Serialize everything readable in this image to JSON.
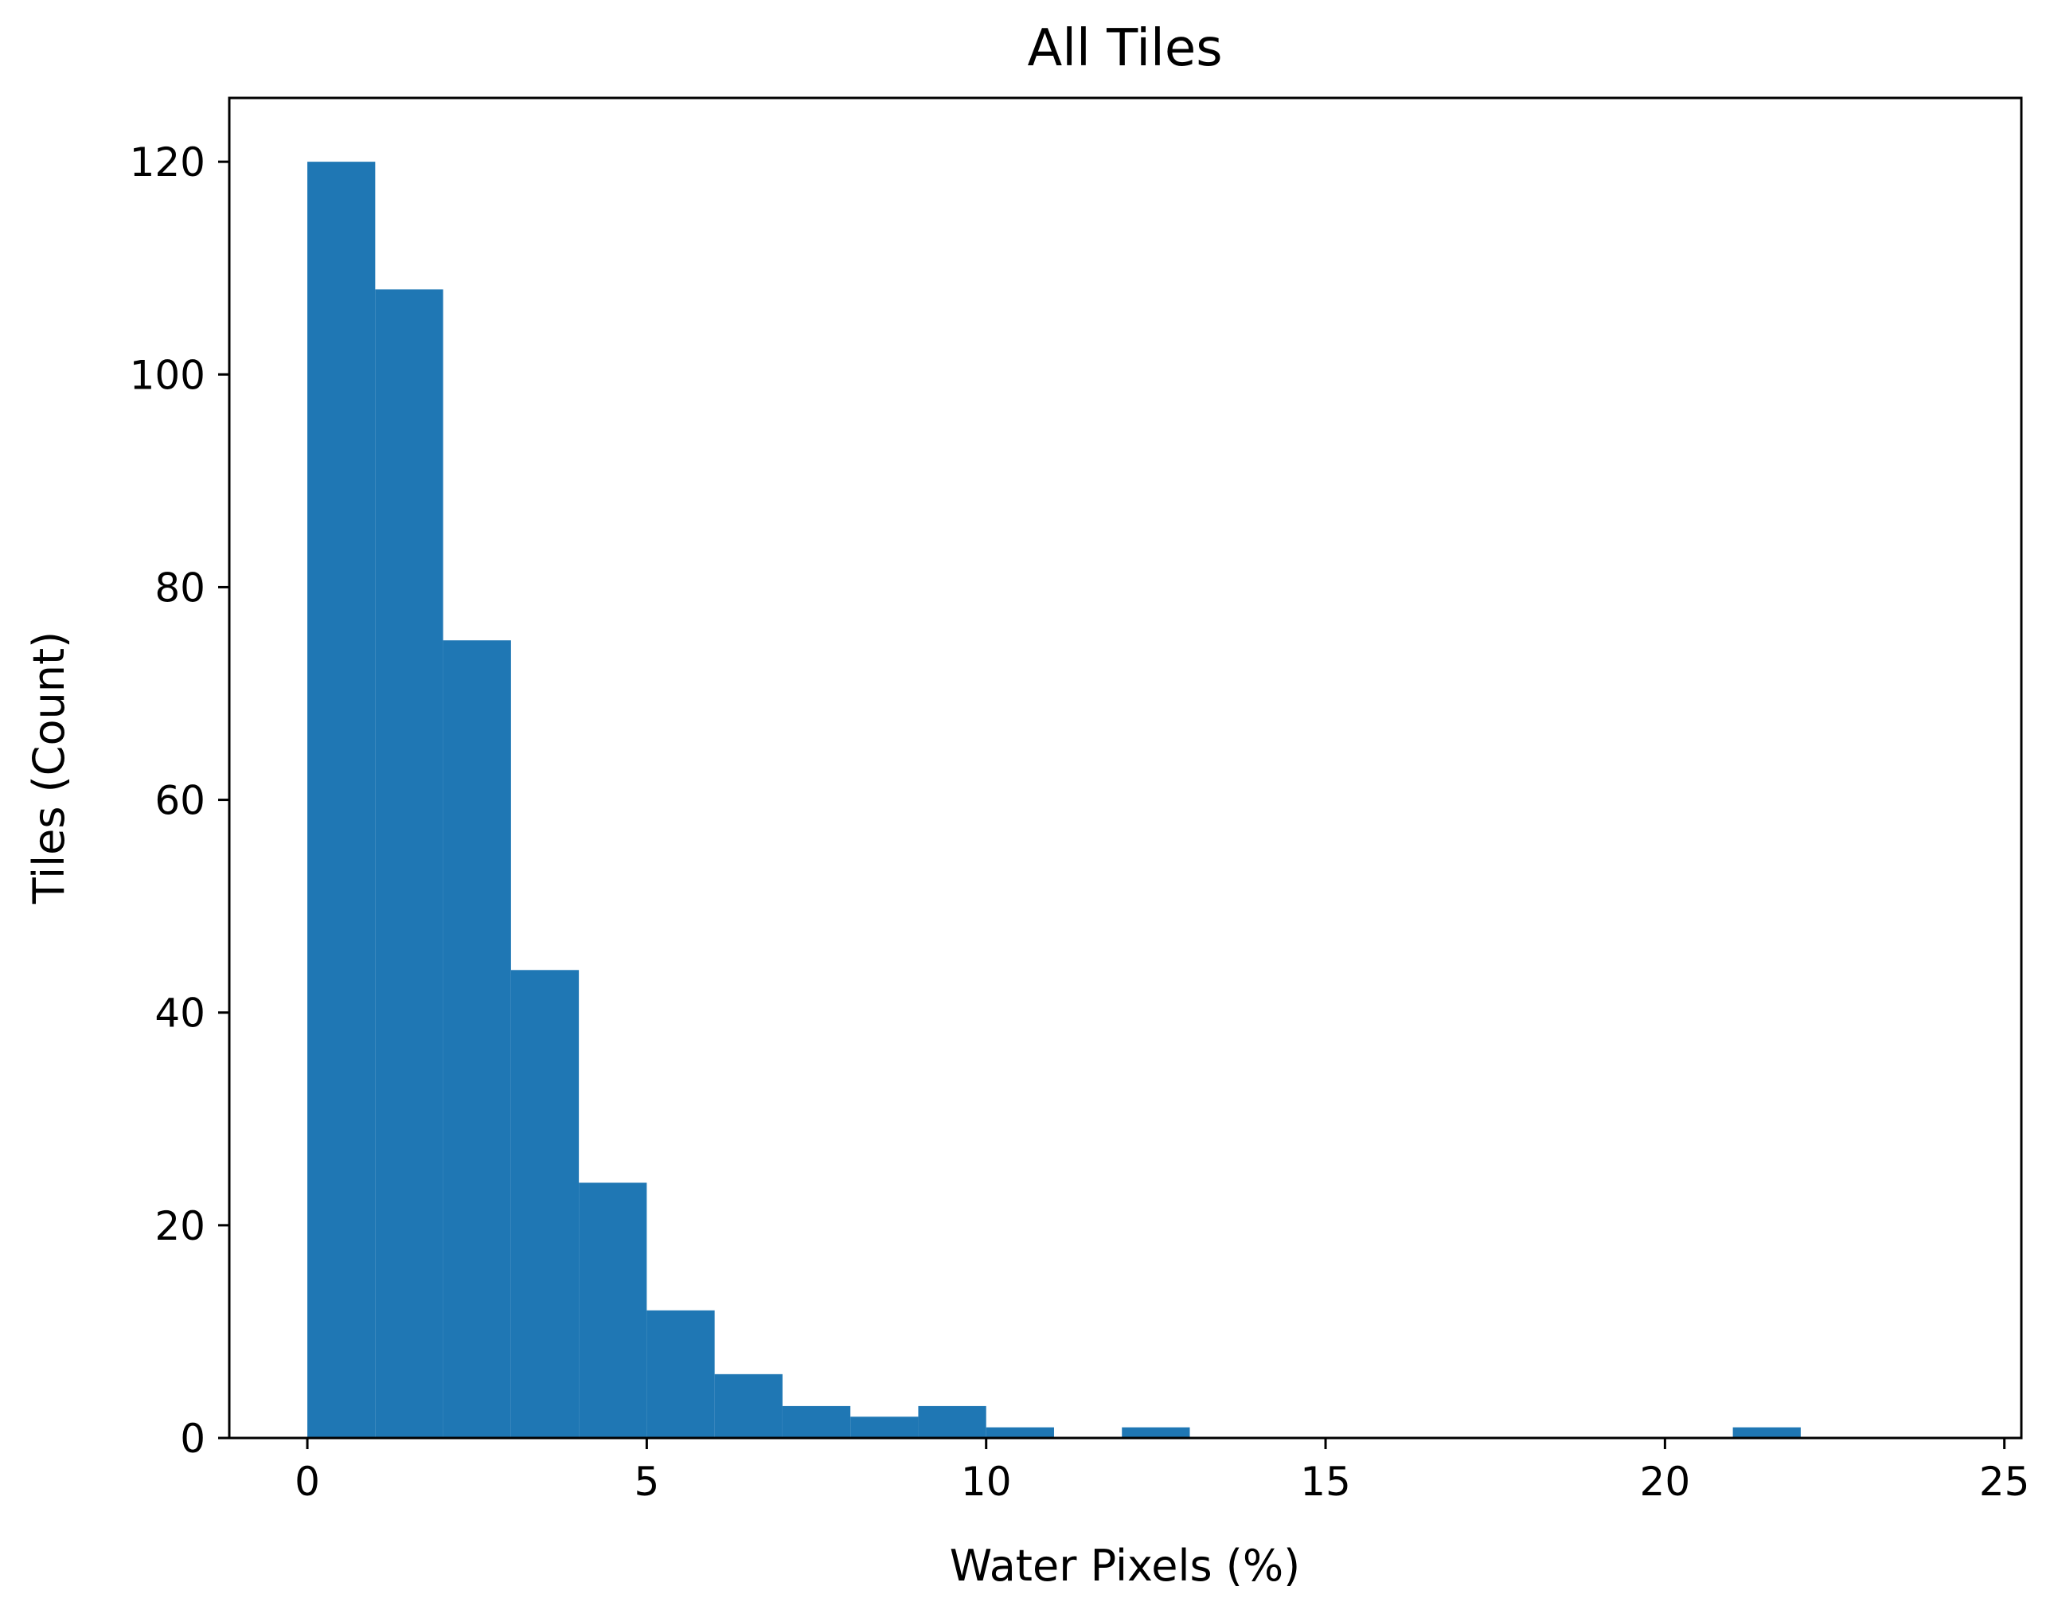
{
  "chart_data": {
    "type": "bar",
    "title": "All Tiles",
    "xlabel": "Water Pixels (%)",
    "ylabel": "Tiles (Count)",
    "xlim": [
      -1.15,
      25.25
    ],
    "ylim": [
      0,
      126
    ],
    "grid": false,
    "xticks": [
      0,
      5,
      10,
      15,
      20,
      25
    ],
    "yticks": [
      0,
      20,
      40,
      60,
      80,
      100,
      120
    ],
    "bar_color": "#1f77b4",
    "bins": [
      {
        "x0": 0,
        "x1": 1,
        "count": 120
      },
      {
        "x0": 1,
        "x1": 2,
        "count": 108
      },
      {
        "x0": 2,
        "x1": 3,
        "count": 75
      },
      {
        "x0": 3,
        "x1": 4,
        "count": 44
      },
      {
        "x0": 4,
        "x1": 5,
        "count": 24
      },
      {
        "x0": 5,
        "x1": 6,
        "count": 12
      },
      {
        "x0": 6,
        "x1": 7,
        "count": 6
      },
      {
        "x0": 7,
        "x1": 8,
        "count": 3
      },
      {
        "x0": 8,
        "x1": 9,
        "count": 2
      },
      {
        "x0": 9,
        "x1": 10,
        "count": 3
      },
      {
        "x0": 10,
        "x1": 11,
        "count": 1
      },
      {
        "x0": 11,
        "x1": 12,
        "count": 0
      },
      {
        "x0": 12,
        "x1": 13,
        "count": 1
      },
      {
        "x0": 13,
        "x1": 14,
        "count": 0
      },
      {
        "x0": 14,
        "x1": 15,
        "count": 0
      },
      {
        "x0": 15,
        "x1": 16,
        "count": 0
      },
      {
        "x0": 16,
        "x1": 17,
        "count": 0
      },
      {
        "x0": 17,
        "x1": 18,
        "count": 0
      },
      {
        "x0": 18,
        "x1": 19,
        "count": 0
      },
      {
        "x0": 19,
        "x1": 20,
        "count": 0
      },
      {
        "x0": 20,
        "x1": 21,
        "count": 0
      },
      {
        "x0": 21,
        "x1": 22,
        "count": 1
      }
    ]
  }
}
